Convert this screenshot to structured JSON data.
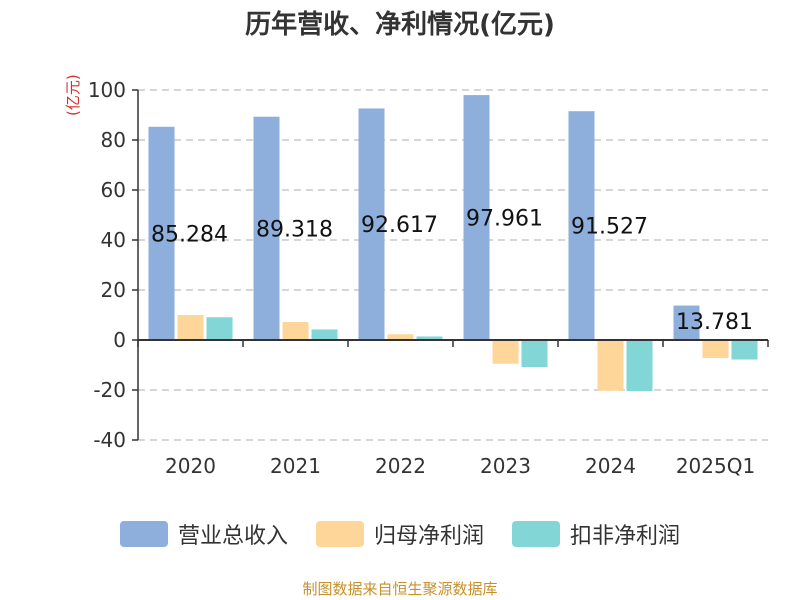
{
  "chart_data": {
    "type": "bar",
    "title": "历年营收、净利情况(亿元)",
    "ylabel": "(亿元)",
    "ylim": [
      -40,
      100
    ],
    "yticks": [
      100,
      80,
      60,
      40,
      20,
      0,
      -20,
      -40
    ],
    "grid": true,
    "legend_position": "bottom",
    "categories": [
      "2020",
      "2021",
      "2022",
      "2023",
      "2024",
      "2025Q1"
    ],
    "series": [
      {
        "name": "营业总收入",
        "color": "#8eaedb",
        "values": [
          85.284,
          89.318,
          92.617,
          97.961,
          91.527,
          13.781
        ]
      },
      {
        "name": "归母净利润",
        "color": "#ffd699",
        "values": [
          10.0,
          7.2,
          2.3,
          -9.5,
          -20.3,
          -7.2
        ]
      },
      {
        "name": "扣非净利润",
        "color": "#82d6d6",
        "values": [
          9.1,
          4.2,
          1.4,
          -10.8,
          -20.4,
          -7.8
        ]
      }
    ],
    "data_labels": [
      "85.284",
      "89.318",
      "92.617",
      "97.961",
      "91.527",
      "13.781"
    ]
  },
  "footer": {
    "source": "制图数据来自恒生聚源数据库"
  }
}
